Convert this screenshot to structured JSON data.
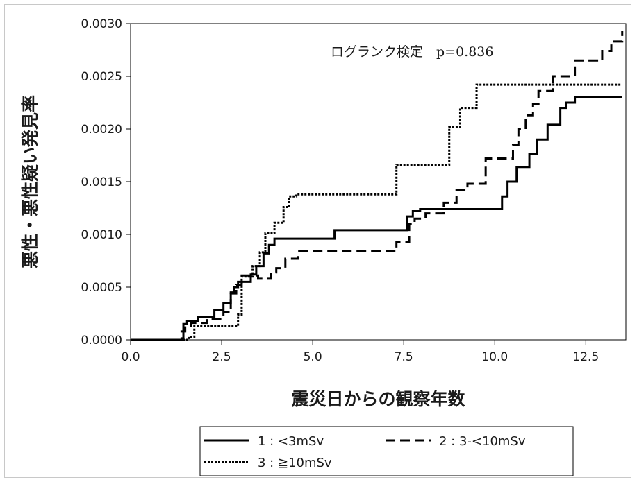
{
  "chart_data": {
    "type": "line",
    "step": true,
    "xlabel": "震災日からの観察年数",
    "ylabel": "悪性・悪性疑い発見率",
    "xlim": [
      0,
      13.6
    ],
    "ylim": [
      0,
      0.003
    ],
    "xticks": [
      "0.0",
      "2.5",
      "5.0",
      "7.5",
      "10.0",
      "12.5"
    ],
    "yticks": [
      "0.0000",
      "0.0005",
      "0.0010",
      "0.0015",
      "0.0020",
      "0.0025",
      "0.0030"
    ],
    "annotation": "ログランク検定　p=0.836",
    "grid": false,
    "legend_position": "bottom",
    "series": [
      {
        "name": "1 : <3mSv",
        "dash": "solid",
        "color": "#000000",
        "x": [
          0,
          1.45,
          1.55,
          1.85,
          2.3,
          2.55,
          2.75,
          2.85,
          2.95,
          3.3,
          3.45,
          3.65,
          3.8,
          3.95,
          4.3,
          5.6,
          7.6,
          7.75,
          7.95,
          10.2,
          10.35,
          10.6,
          10.95,
          11.15,
          11.45,
          11.8,
          11.95,
          12.2,
          13.5
        ],
        "y": [
          0,
          0.00015,
          0.00018,
          0.00022,
          0.00028,
          0.00035,
          0.00045,
          0.0005,
          0.00055,
          0.00062,
          0.0007,
          0.00082,
          0.0009,
          0.00096,
          0.00096,
          0.00104,
          0.00117,
          0.00122,
          0.00124,
          0.00136,
          0.0015,
          0.00164,
          0.00176,
          0.0019,
          0.00204,
          0.0022,
          0.00225,
          0.0023,
          0.0023
        ]
      },
      {
        "name": "2 : 3-<10mSv",
        "dash": "longdash",
        "color": "#000000",
        "x": [
          0,
          1.4,
          1.5,
          1.65,
          2.1,
          2.55,
          2.75,
          2.9,
          3.05,
          3.5,
          3.85,
          4.0,
          4.25,
          4.6,
          6.5,
          7.3,
          7.65,
          7.8,
          8.1,
          8.6,
          8.95,
          9.25,
          9.75,
          10.5,
          10.65,
          10.85,
          11.05,
          11.2,
          11.6,
          12.2,
          12.95,
          13.2,
          13.5
        ],
        "y": [
          0,
          8e-05,
          0.00013,
          0.00016,
          0.0002,
          0.00026,
          0.00044,
          0.00052,
          0.00061,
          0.00058,
          0.00064,
          0.00068,
          0.00077,
          0.00084,
          0.00084,
          0.00093,
          0.0011,
          0.00115,
          0.0012,
          0.0013,
          0.00142,
          0.00148,
          0.00172,
          0.00185,
          0.002,
          0.00213,
          0.00224,
          0.00236,
          0.0025,
          0.00265,
          0.00274,
          0.00283,
          0.00293
        ]
      },
      {
        "name": "3 : ≧10mSv",
        "dash": "dotted",
        "color": "#000000",
        "x": [
          0,
          1.6,
          1.75,
          2.95,
          3.05,
          3.35,
          3.55,
          3.7,
          3.95,
          4.2,
          4.35,
          4.55,
          7.05,
          7.3,
          8.2,
          8.75,
          9.05,
          9.5,
          13.5
        ],
        "y": [
          0,
          3e-05,
          0.00013,
          0.00024,
          0.0006,
          0.0007,
          0.00083,
          0.00101,
          0.00111,
          0.00126,
          0.00136,
          0.00138,
          0.00138,
          0.00166,
          0.00166,
          0.00202,
          0.0022,
          0.00242,
          0.00242
        ]
      }
    ]
  }
}
